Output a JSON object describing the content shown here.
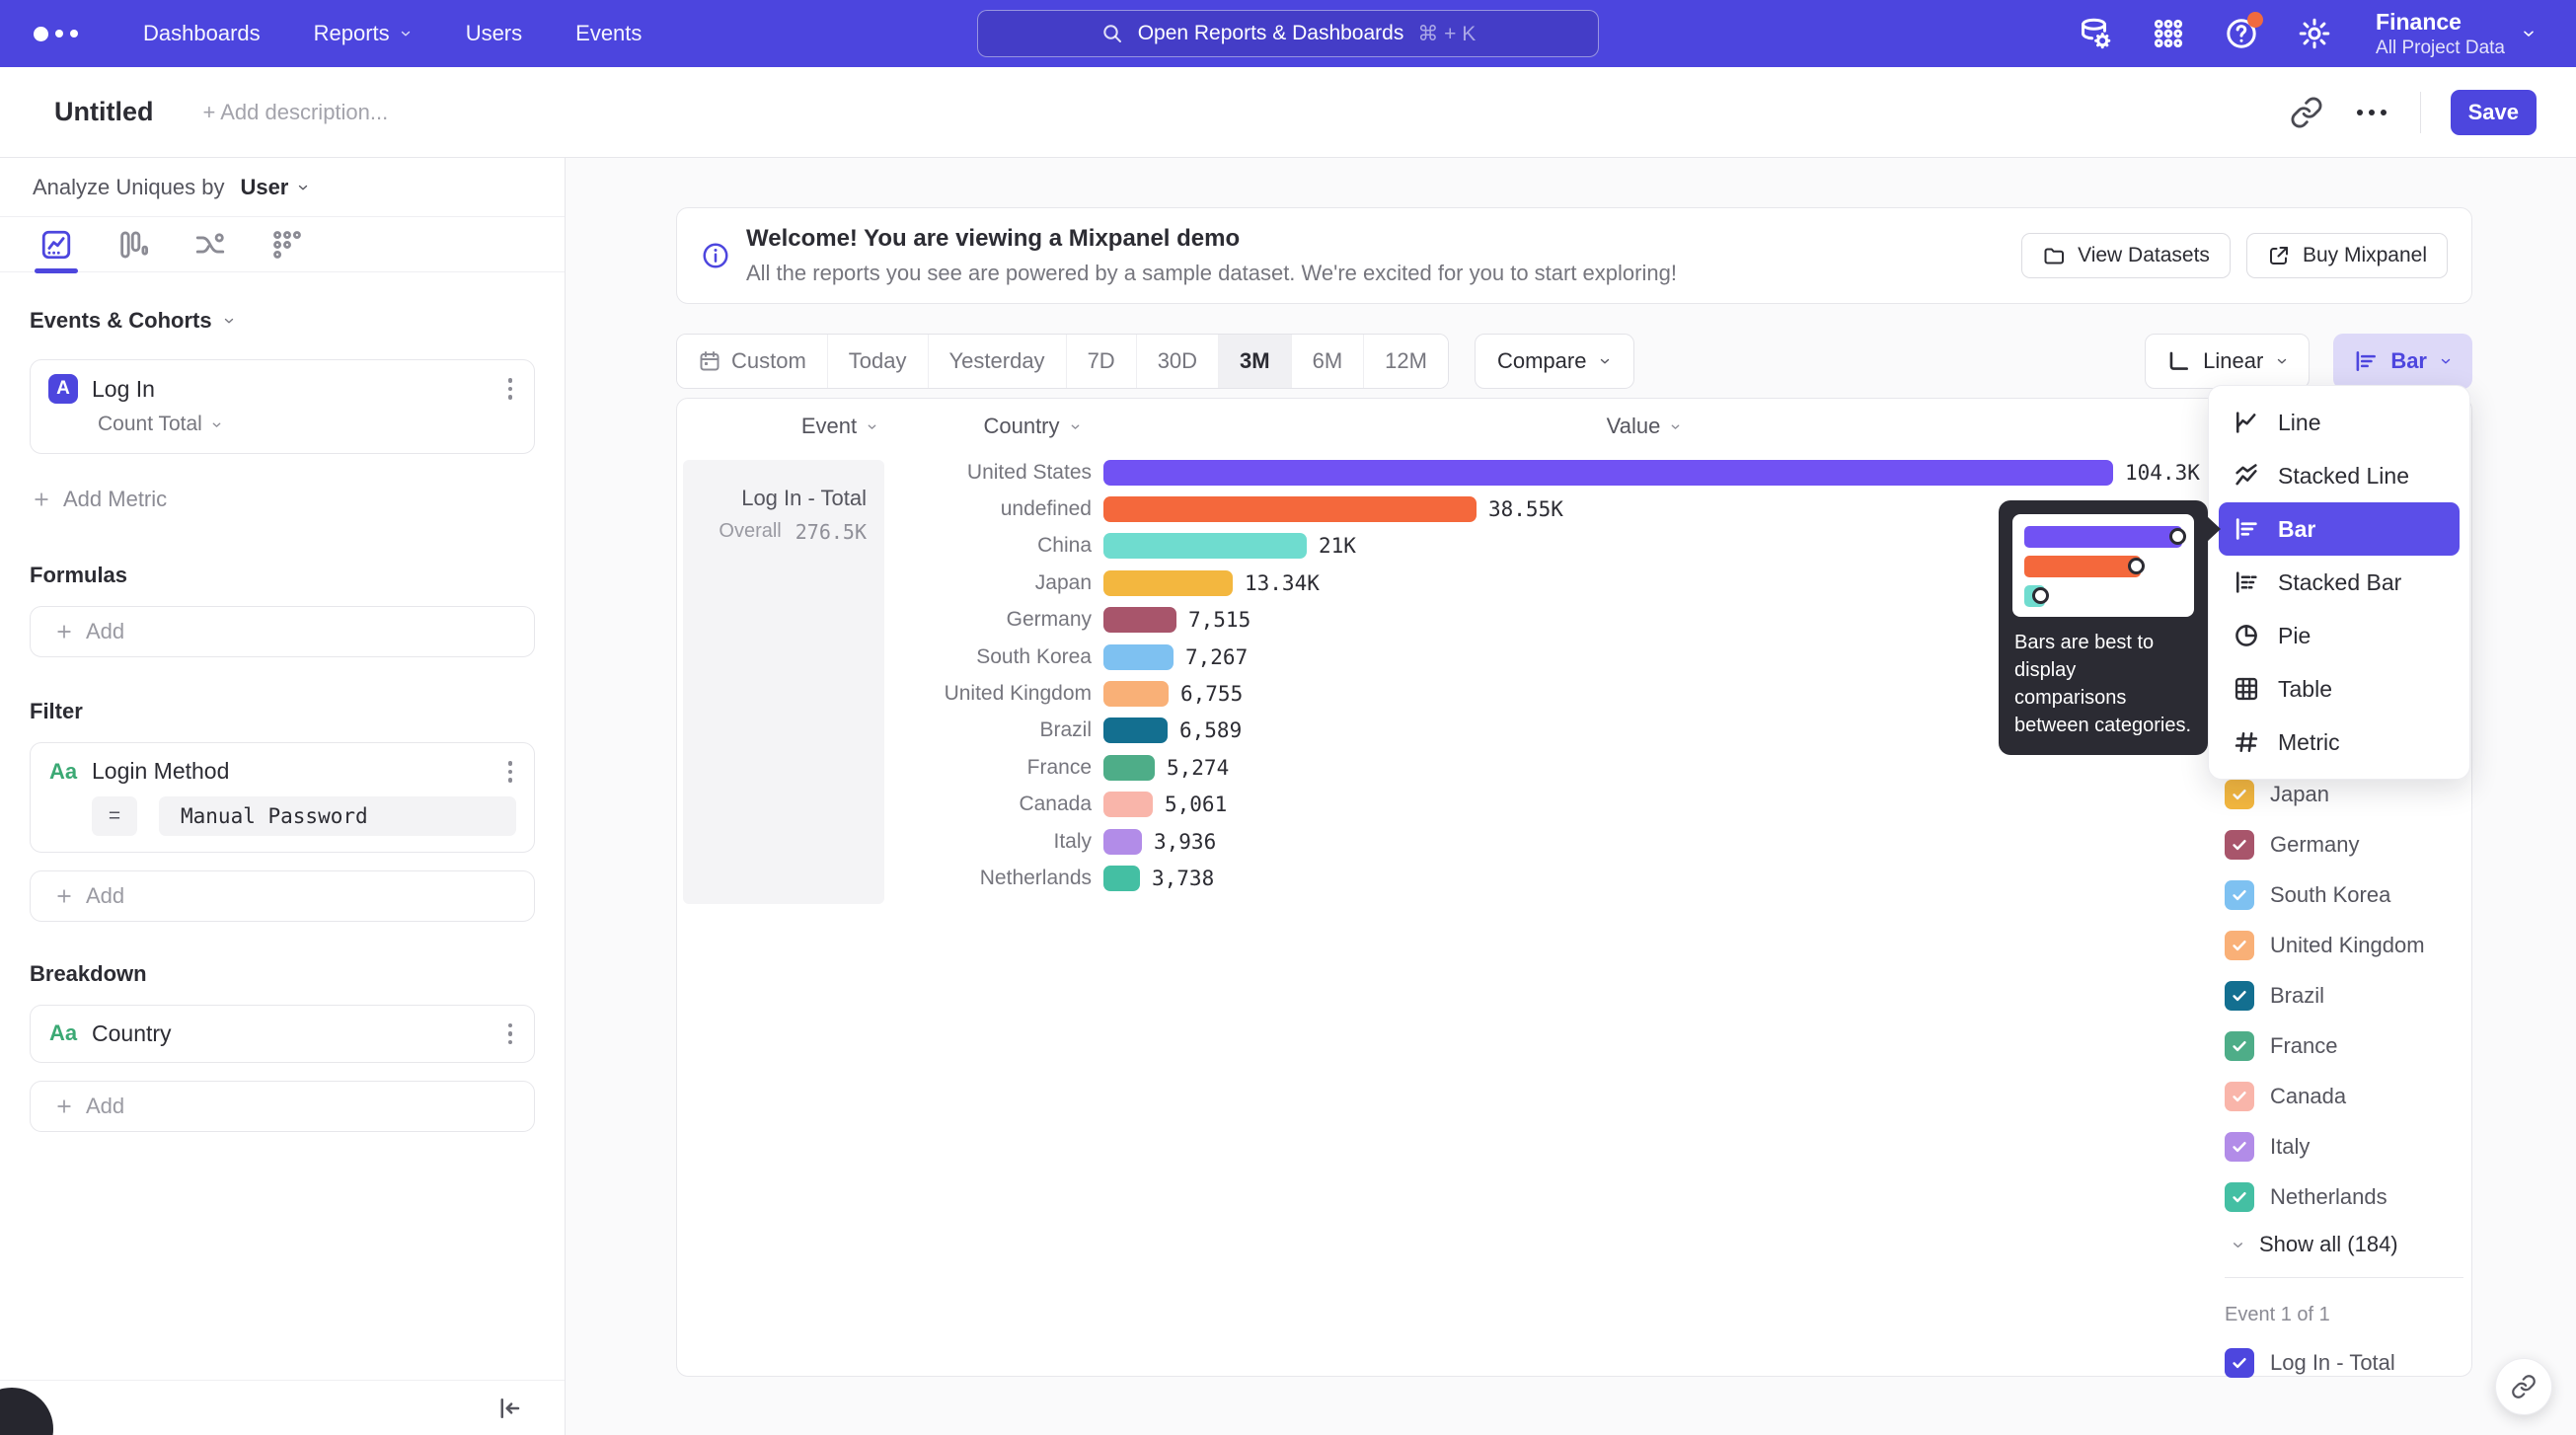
{
  "brand": {
    "accent": "#4D46DE",
    "nav_background": "#4C45DE",
    "menu_selected": "#5B4EE8"
  },
  "nav": {
    "items": [
      {
        "label": "Dashboards",
        "chevron": false
      },
      {
        "label": "Reports",
        "chevron": true
      },
      {
        "label": "Users",
        "chevron": false
      },
      {
        "label": "Events",
        "chevron": false
      }
    ],
    "search": {
      "placeholder": "Open Reports & Dashboards",
      "shortcut": "⌘ + K"
    },
    "project": {
      "name": "Finance",
      "scope": "All Project Data"
    }
  },
  "header": {
    "title": "Untitled",
    "description_placeholder": "+ Add description...",
    "save_label": "Save"
  },
  "sidebar": {
    "analyze_prefix": "Analyze Uniques by",
    "analyze_entity": "User",
    "events_section": {
      "title": "Events & Cohorts",
      "event_badge": "A",
      "event_name": "Log In",
      "aggregation": "Count Total",
      "add_label": "Add Metric"
    },
    "formulas_section": {
      "title": "Formulas",
      "add_label": "Add"
    },
    "filter_section": {
      "title": "Filter",
      "property_type": "Aa",
      "property_name": "Login Method",
      "operator": "=",
      "value": "Manual Password",
      "add_label": "Add"
    },
    "breakdown_section": {
      "title": "Breakdown",
      "property_type": "Aa",
      "property_name": "Country",
      "add_label": "Add"
    }
  },
  "banner": {
    "title": "Welcome! You are viewing a Mixpanel demo",
    "subtitle": "All the reports you see are powered by a sample dataset. We're excited for you to start exploring!",
    "view_datasets_label": "View Datasets",
    "buy_label": "Buy Mixpanel"
  },
  "controls": {
    "date_ranges": [
      "Custom",
      "Today",
      "Yesterday",
      "7D",
      "30D",
      "3M",
      "6M",
      "12M"
    ],
    "active_range": "3M",
    "compare_label": "Compare",
    "scale_label": "Linear",
    "chart_type_label": "Bar"
  },
  "chart_data": {
    "type": "bar",
    "orientation": "horizontal",
    "title": "Log In - Total",
    "overall_label": "Overall",
    "overall_value": "276.5K",
    "columns": {
      "event": "Event",
      "category": "Country",
      "value": "Value"
    },
    "categories": [
      "United States",
      "undefined",
      "China",
      "Japan",
      "Germany",
      "South Korea",
      "United Kingdom",
      "Brazil",
      "France",
      "Canada",
      "Italy",
      "Netherlands"
    ],
    "values": [
      104300,
      38550,
      21000,
      13340,
      7515,
      7267,
      6755,
      6589,
      5274,
      5061,
      3936,
      3738
    ],
    "value_labels": [
      "104.3K",
      "38.55K",
      "21K",
      "13.34K",
      "7,515",
      "7,267",
      "6,755",
      "6,589",
      "5,274",
      "5,061",
      "3,936",
      "3,738"
    ],
    "colors": [
      "#7152F3",
      "#F4683C",
      "#6FDCCF",
      "#F3B73F",
      "#A8556B",
      "#7EC1F1",
      "#F9B077",
      "#136F90",
      "#4EAD88",
      "#F9B5AA",
      "#B28CE8",
      "#44BFA3"
    ],
    "hatched_categories": [
      "Netherlands"
    ],
    "xlim": [
      0,
      104300
    ],
    "grid": false,
    "legend_position": "right"
  },
  "chart_menu": {
    "items": [
      {
        "label": "Line",
        "icon": "line-chart-icon"
      },
      {
        "label": "Stacked Line",
        "icon": "stacked-line-chart-icon"
      },
      {
        "label": "Bar",
        "icon": "bar-chart-icon"
      },
      {
        "label": "Stacked Bar",
        "icon": "stacked-bar-chart-icon"
      },
      {
        "label": "Pie",
        "icon": "pie-chart-icon"
      },
      {
        "label": "Table",
        "icon": "table-icon"
      },
      {
        "label": "Metric",
        "icon": "metric-icon"
      }
    ],
    "selected": "Bar",
    "tooltip": "Bars are best to display comparisons between categories."
  },
  "legend": {
    "visible_items": [
      {
        "label": "Japan",
        "color": "#F3B73F",
        "checked": true,
        "hatched": false
      },
      {
        "label": "Germany",
        "color": "#A8556B",
        "checked": true,
        "hatched": false
      },
      {
        "label": "South Korea",
        "color": "#7EC1F1",
        "checked": true,
        "hatched": false
      },
      {
        "label": "United Kingdom",
        "color": "#F9B077",
        "checked": true,
        "hatched": false
      },
      {
        "label": "Brazil",
        "color": "#136F90",
        "checked": true,
        "hatched": false
      },
      {
        "label": "France",
        "color": "#4EAD88",
        "checked": true,
        "hatched": false
      },
      {
        "label": "Canada",
        "color": "#F9B5AA",
        "checked": true,
        "hatched": false
      },
      {
        "label": "Italy",
        "color": "#B28CE8",
        "checked": true,
        "hatched": false
      },
      {
        "label": "Netherlands",
        "color": "#44BFA3",
        "checked": true,
        "hatched": true
      }
    ],
    "show_all_label": "Show all (184)",
    "event_count_label": "Event 1 of 1",
    "event_item": {
      "label": "Log In - Total",
      "checked": true,
      "color": "#4D46DE"
    }
  }
}
